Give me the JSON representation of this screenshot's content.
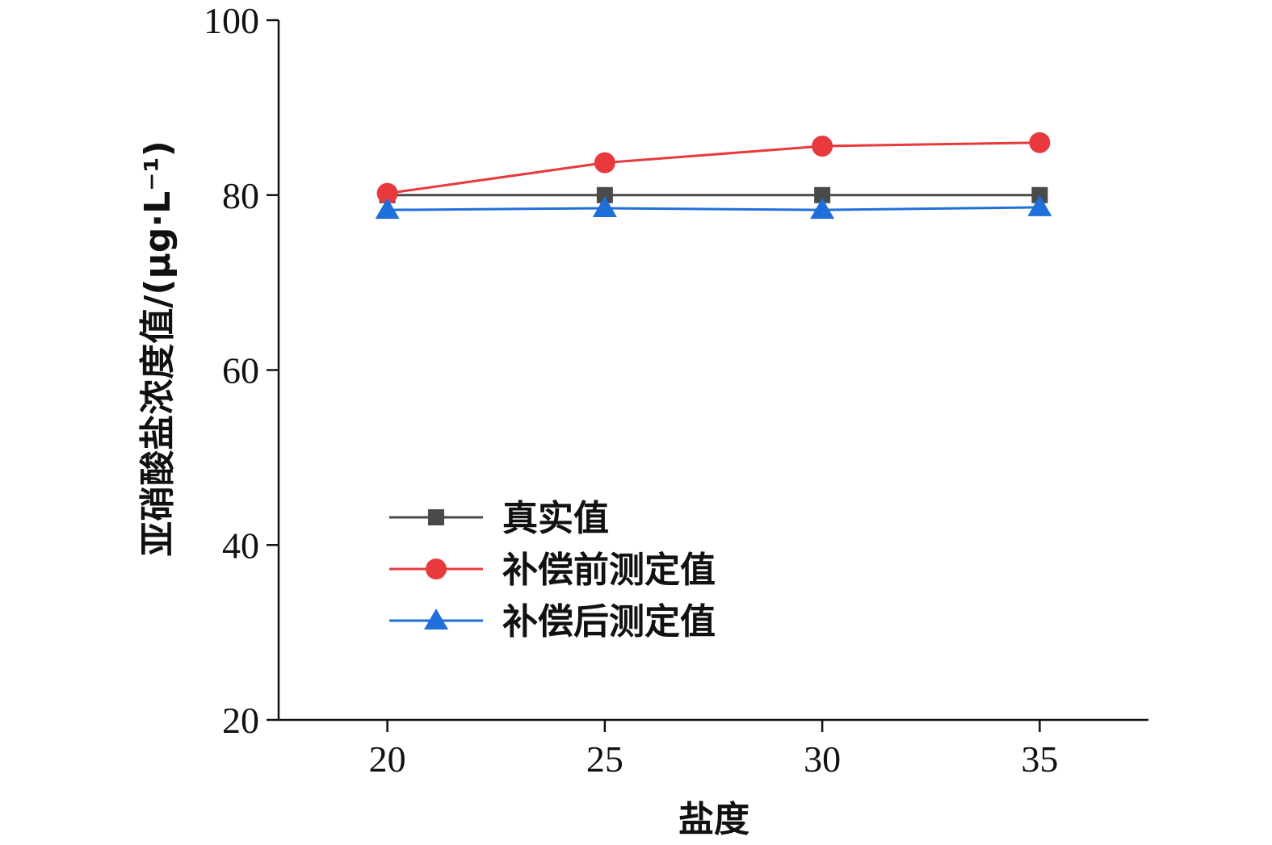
{
  "chart_data": {
    "type": "line",
    "xlabel": "盐度",
    "ylabel": "亚硝酸盐浓度值/(μg·L⁻¹)",
    "x": [
      20,
      25,
      30,
      35
    ],
    "xlim": [
      17.5,
      37.5
    ],
    "ylim": [
      20,
      100
    ],
    "xticks": [
      20,
      25,
      30,
      35
    ],
    "yticks": [
      20,
      40,
      60,
      80,
      100
    ],
    "grid": false,
    "legend_position": "bottom-left",
    "series": [
      {
        "name": "真实值",
        "values": [
          80,
          80,
          80,
          80
        ],
        "color": "#4a4a4a",
        "marker": "square"
      },
      {
        "name": "补偿前测定值",
        "values": [
          80.2,
          83.7,
          85.6,
          86.0
        ],
        "color": "#e8393c",
        "marker": "circle"
      },
      {
        "name": "补偿后测定值",
        "values": [
          78.3,
          78.5,
          78.3,
          78.6
        ],
        "color": "#1f6fdb",
        "marker": "triangle"
      }
    ]
  }
}
